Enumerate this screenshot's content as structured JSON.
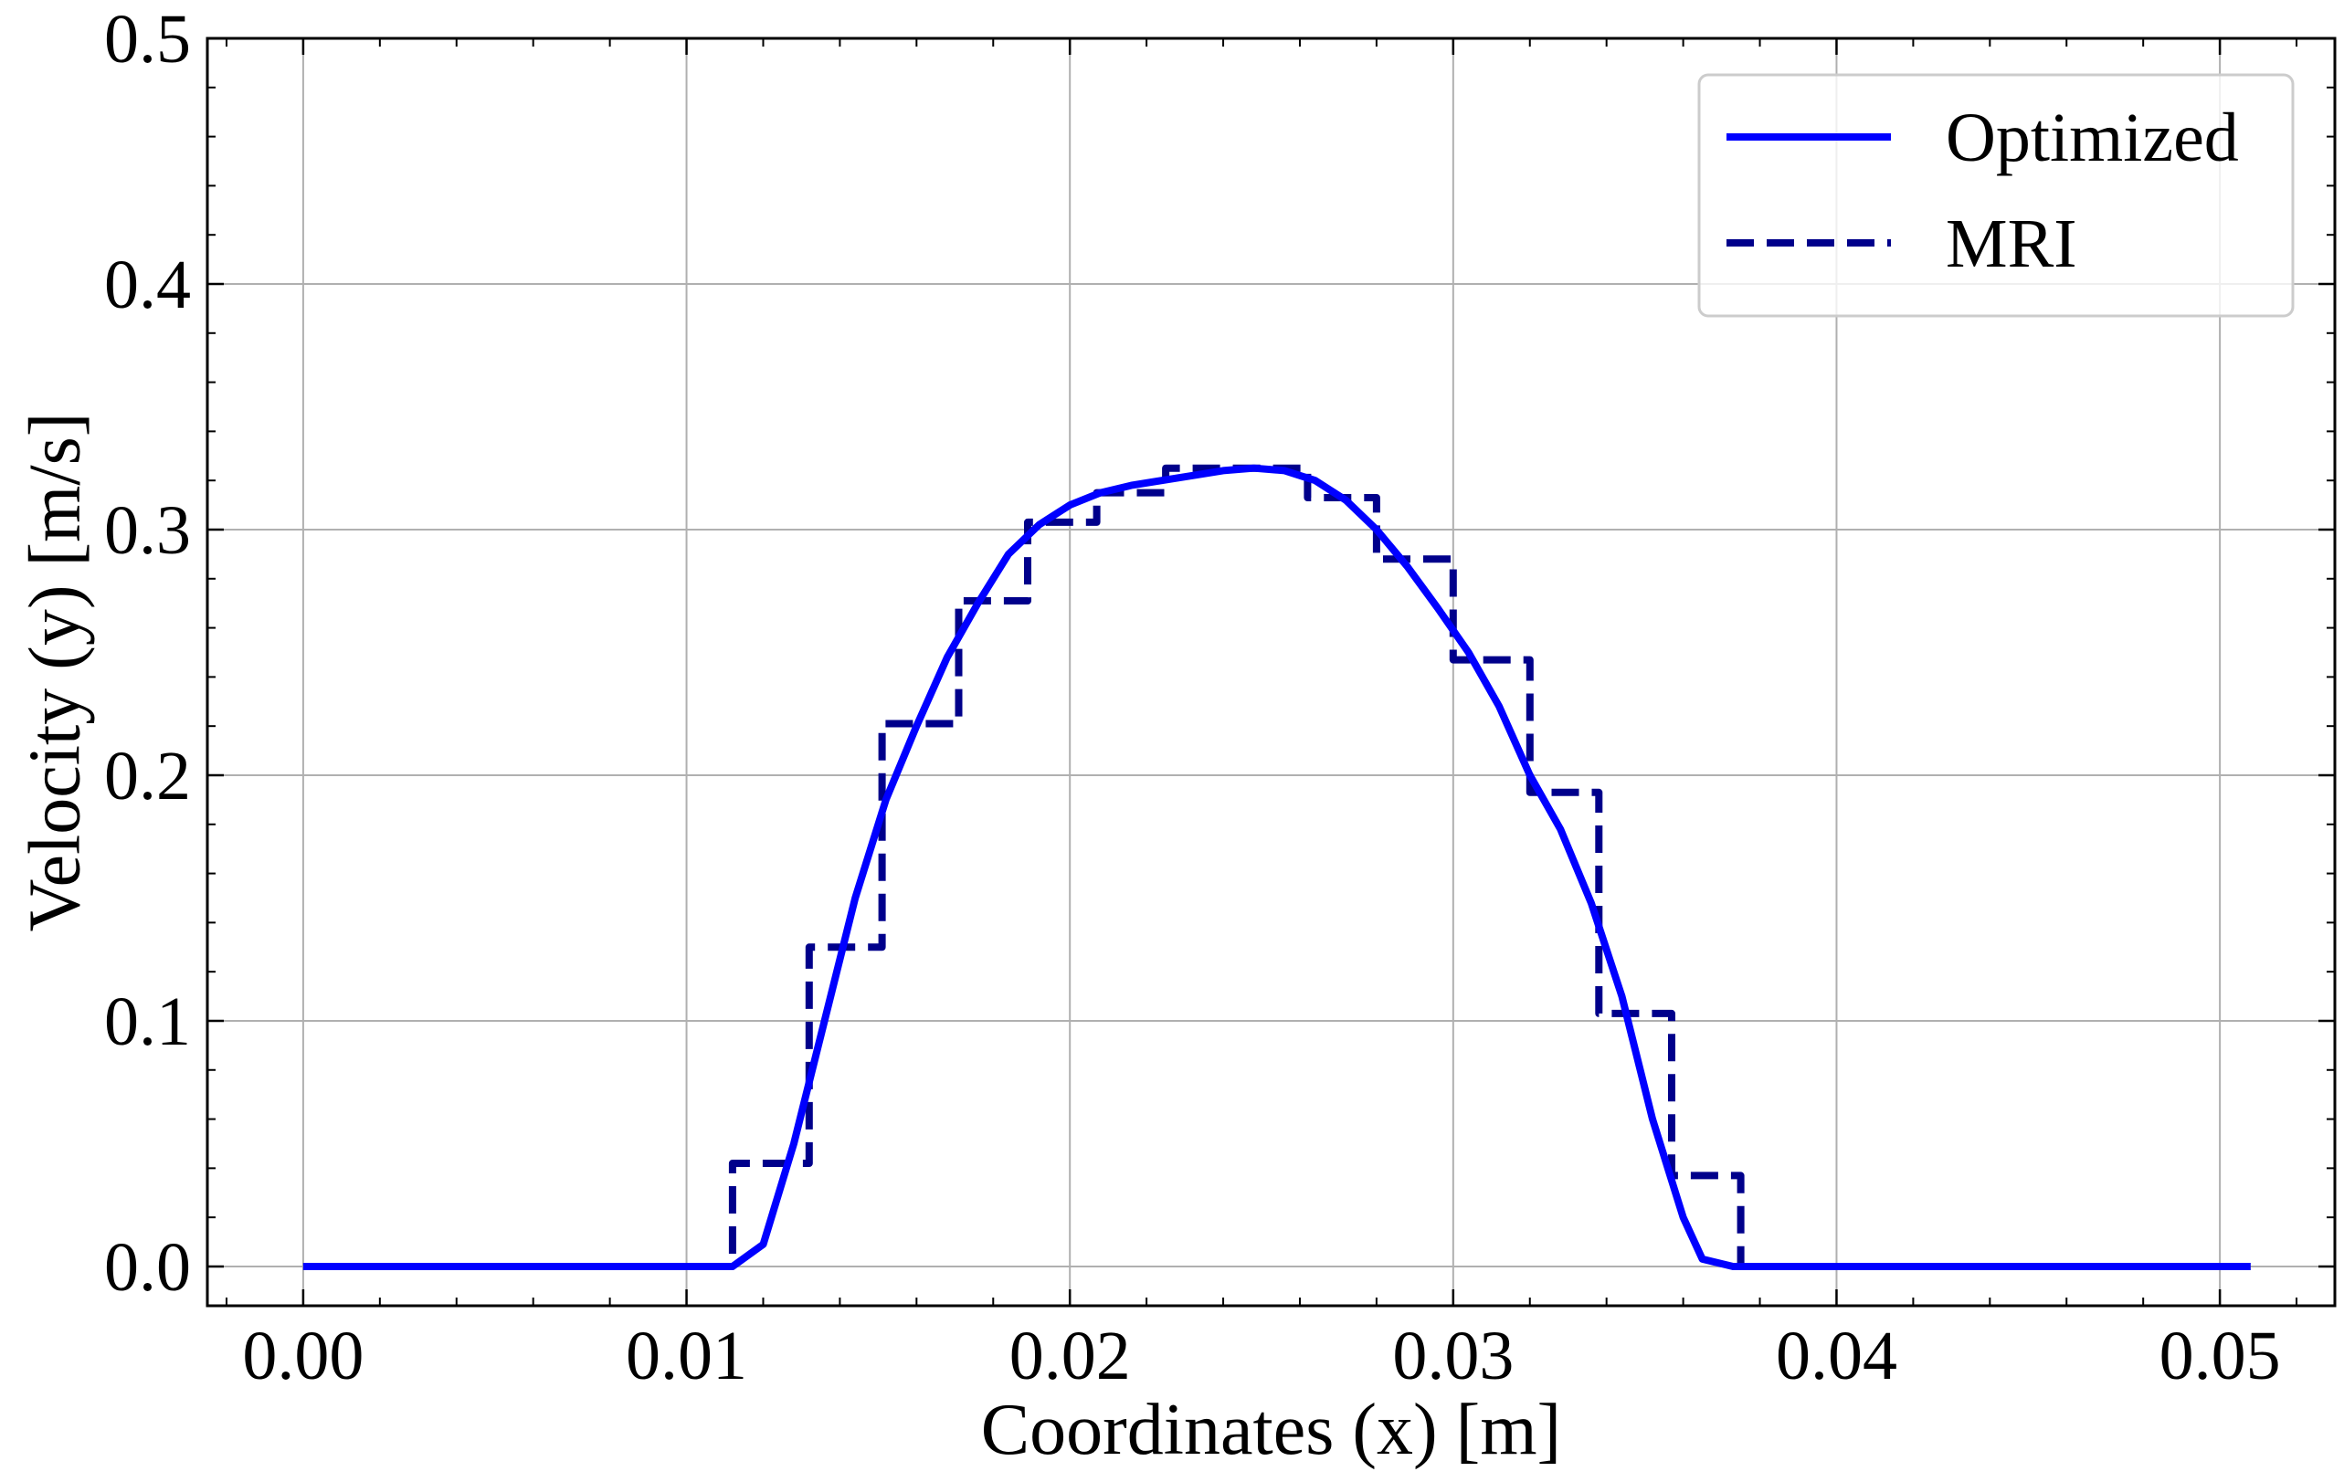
{
  "chart_data": {
    "type": "line",
    "title": "",
    "xlabel": "Coordinates (x) [m]",
    "ylabel": "Velocity (y) [m/s]",
    "xlim": [
      -0.0025,
      0.053
    ],
    "ylim": [
      -0.016,
      0.5
    ],
    "xticks": [
      0.0,
      0.01,
      0.02,
      0.03,
      0.04,
      0.05
    ],
    "xtick_labels": [
      "0.00",
      "0.01",
      "0.02",
      "0.03",
      "0.04",
      "0.05"
    ],
    "yticks": [
      0.0,
      0.1,
      0.2,
      0.3,
      0.4,
      0.5
    ],
    "ytick_labels": [
      "0.0",
      "0.1",
      "0.2",
      "0.3",
      "0.4",
      "0.5"
    ],
    "grid": true,
    "legend_position": "top-right",
    "series": [
      {
        "name": "Optimized",
        "style": "solid",
        "color": "#0000ff",
        "x": [
          0.0,
          0.0112,
          0.012,
          0.0128,
          0.0136,
          0.0144,
          0.0152,
          0.016,
          0.0168,
          0.0176,
          0.0184,
          0.0192,
          0.02,
          0.0208,
          0.0216,
          0.0224,
          0.0232,
          0.024,
          0.0248,
          0.0256,
          0.0264,
          0.0272,
          0.028,
          0.0288,
          0.0296,
          0.0304,
          0.0312,
          0.032,
          0.0328,
          0.0336,
          0.0344,
          0.0352,
          0.036,
          0.0365,
          0.0373,
          0.0508
        ],
        "y": [
          0.0,
          0.0,
          0.009,
          0.05,
          0.1,
          0.15,
          0.19,
          0.22,
          0.248,
          0.27,
          0.29,
          0.302,
          0.31,
          0.315,
          0.318,
          0.32,
          0.322,
          0.324,
          0.325,
          0.324,
          0.32,
          0.312,
          0.3,
          0.285,
          0.268,
          0.25,
          0.228,
          0.2,
          0.178,
          0.148,
          0.11,
          0.06,
          0.02,
          0.003,
          0.0,
          0.0
        ]
      },
      {
        "name": "MRI",
        "style": "dashed",
        "color": "#00008b",
        "x": [
          0.0,
          0.0112,
          0.0112,
          0.0132,
          0.0132,
          0.0151,
          0.0151,
          0.0171,
          0.0171,
          0.0189,
          0.0189,
          0.0207,
          0.0207,
          0.0225,
          0.0225,
          0.0262,
          0.0262,
          0.028,
          0.028,
          0.03,
          0.03,
          0.032,
          0.032,
          0.0338,
          0.0338,
          0.0357,
          0.0357,
          0.0375,
          0.0375,
          0.0508
        ],
        "y": [
          0.0,
          0.0,
          0.042,
          0.042,
          0.13,
          0.13,
          0.221,
          0.221,
          0.271,
          0.271,
          0.303,
          0.303,
          0.315,
          0.315,
          0.325,
          0.325,
          0.313,
          0.313,
          0.288,
          0.288,
          0.247,
          0.247,
          0.193,
          0.193,
          0.103,
          0.103,
          0.037,
          0.037,
          0.0,
          0.0
        ]
      }
    ]
  }
}
